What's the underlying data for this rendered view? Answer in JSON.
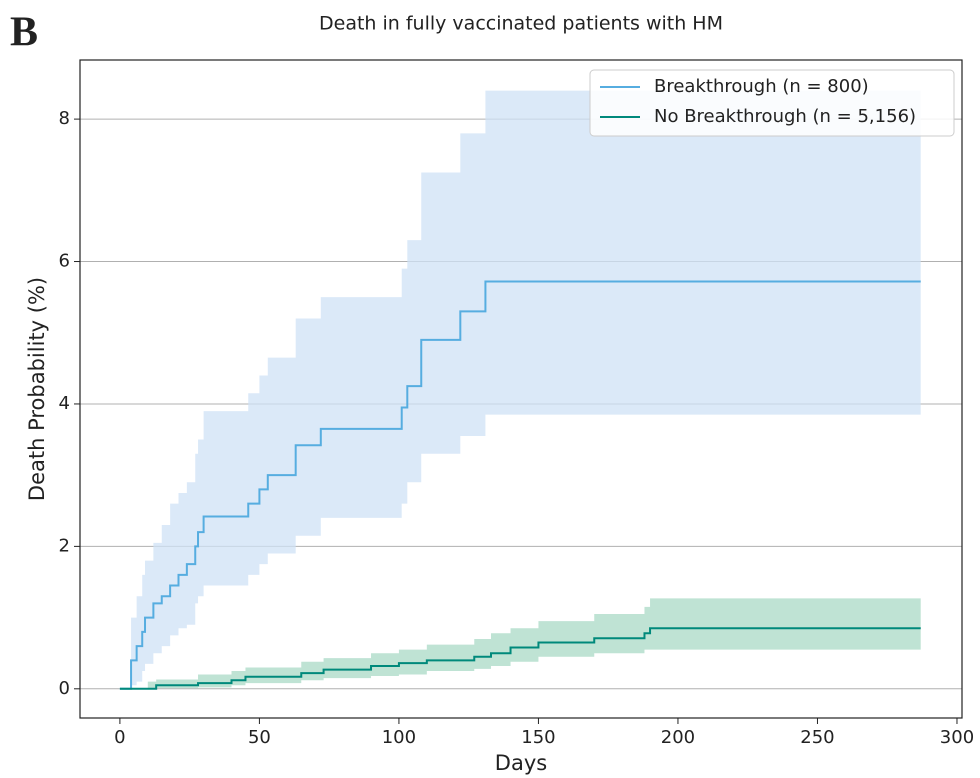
{
  "chart_data": {
    "type": "step-band",
    "panel_label": "B",
    "title": "Death in fully vaccinated patients with HM",
    "xlabel": "Days",
    "ylabel": "Death Probability (%)",
    "xlim": [
      -14.3,
      301.8
    ],
    "ylim": [
      -0.41,
      8.83
    ],
    "xticks": [
      0,
      50,
      100,
      150,
      200,
      250,
      300
    ],
    "yticks": [
      0,
      2,
      4,
      6,
      8
    ],
    "grid": "y",
    "legend": "upper-right",
    "series": [
      {
        "name": "Breakthrough (n = 800)",
        "color": "#56ade0",
        "band_color": "#cfe2f5",
        "x": [
          0,
          3,
          4,
          6,
          8,
          9,
          12,
          15,
          18,
          21,
          24,
          27,
          28,
          30,
          46,
          50,
          53,
          63,
          72,
          101,
          103,
          108,
          122,
          131,
          287
        ],
        "values": [
          0,
          0,
          0.4,
          0.6,
          0.8,
          1.0,
          1.2,
          1.3,
          1.45,
          1.6,
          1.75,
          2.0,
          2.2,
          2.42,
          2.6,
          2.8,
          3.0,
          3.42,
          3.65,
          3.95,
          4.25,
          4.9,
          5.3,
          5.72,
          5.72
        ],
        "upper": [
          0,
          0,
          1.0,
          1.3,
          1.6,
          1.8,
          2.05,
          2.3,
          2.6,
          2.75,
          2.9,
          3.3,
          3.5,
          3.9,
          4.15,
          4.4,
          4.65,
          5.2,
          5.5,
          5.9,
          6.3,
          7.25,
          7.8,
          8.4,
          8.4
        ],
        "lower": [
          0,
          0,
          0.05,
          0.1,
          0.25,
          0.35,
          0.5,
          0.6,
          0.75,
          0.85,
          0.9,
          1.2,
          1.3,
          1.45,
          1.6,
          1.75,
          1.9,
          2.15,
          2.4,
          2.6,
          2.9,
          3.3,
          3.55,
          3.85,
          3.85
        ]
      },
      {
        "name": "No Breakthrough (n = 5,156)",
        "color": "#00897b",
        "band_color": "#a9d9c6",
        "x": [
          0,
          10,
          13,
          28,
          40,
          45,
          65,
          73,
          90,
          100,
          110,
          127,
          133,
          140,
          150,
          170,
          188,
          190,
          287
        ],
        "values": [
          0,
          0,
          0.05,
          0.08,
          0.12,
          0.17,
          0.22,
          0.27,
          0.32,
          0.36,
          0.4,
          0.45,
          0.5,
          0.58,
          0.65,
          0.71,
          0.78,
          0.85,
          0.85
        ],
        "upper": [
          0,
          0.1,
          0.13,
          0.2,
          0.25,
          0.3,
          0.38,
          0.43,
          0.5,
          0.55,
          0.62,
          0.7,
          0.78,
          0.85,
          0.95,
          1.05,
          1.15,
          1.27,
          1.27
        ],
        "lower": [
          0,
          0,
          0.01,
          0.02,
          0.05,
          0.08,
          0.12,
          0.15,
          0.18,
          0.2,
          0.25,
          0.28,
          0.32,
          0.38,
          0.45,
          0.5,
          0.55,
          0.55,
          0.55
        ]
      }
    ]
  }
}
